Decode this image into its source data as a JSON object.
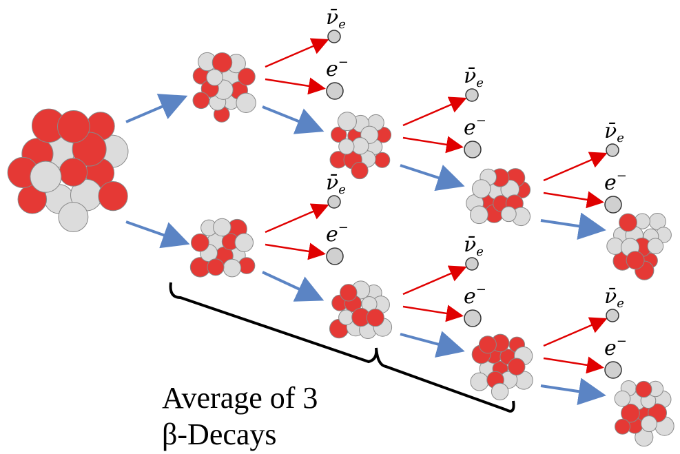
{
  "caption": {
    "lines": [
      "Average of 3",
      "β-Decays"
    ]
  },
  "decays": [
    {
      "neutrino": "ν̄",
      "neutrino_sub": "e",
      "electron": "e",
      "electron_sup": "−"
    },
    {
      "neutrino": "ν̄",
      "neutrino_sub": "e",
      "electron": "e",
      "electron_sup": "−"
    },
    {
      "neutrino": "ν̄",
      "neutrino_sub": "e",
      "electron": "e",
      "electron_sup": "−"
    },
    {
      "neutrino": "ν̄",
      "neutrino_sub": "e",
      "electron": "e",
      "electron_sup": "−"
    },
    {
      "neutrino": "ν̄",
      "neutrino_sub": "e",
      "electron": "e",
      "electron_sup": "−"
    },
    {
      "neutrino": "ν̄",
      "neutrino_sub": "e",
      "electron": "e",
      "electron_sup": "−"
    }
  ]
}
